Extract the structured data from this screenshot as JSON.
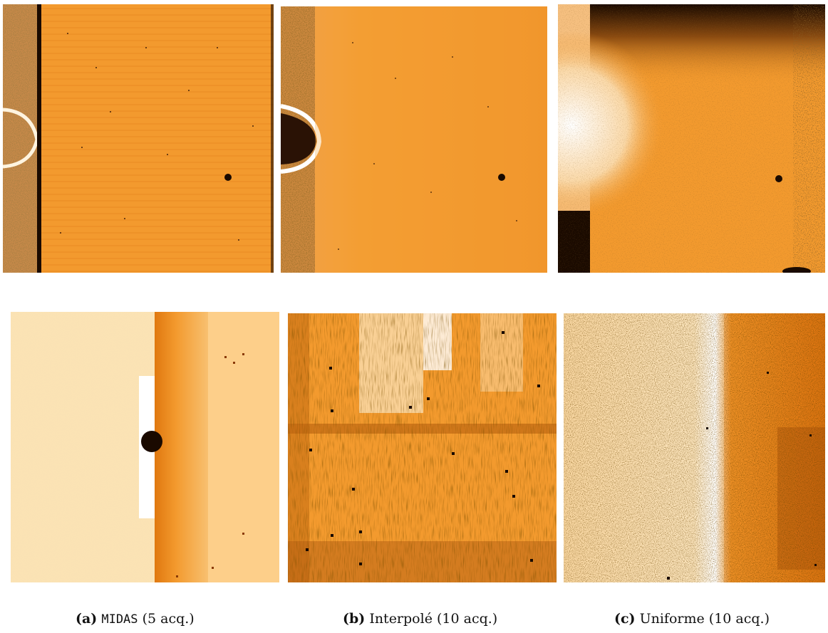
{
  "figure": {
    "subfigures": [
      {
        "id": "a",
        "label": "(a)",
        "method": "MIDAS",
        "note": "(5 acq.)"
      },
      {
        "id": "b",
        "label": "(b)",
        "method": "Interpolé",
        "note": "(10 acq.)"
      },
      {
        "id": "c",
        "label": "(c)",
        "method": "Uniforme",
        "note": "(10 acq.)"
      }
    ]
  },
  "colors": {
    "base_orange": "#f39a2e",
    "dark": "#1a0a00",
    "pale": "#fde8c0",
    "white": "#ffffff"
  },
  "icons": [
    "image-panel"
  ]
}
